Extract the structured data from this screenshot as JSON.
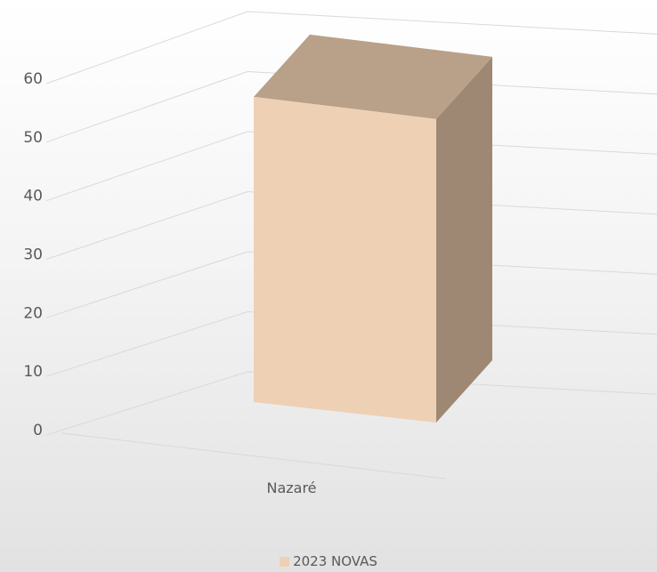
{
  "chart_data": {
    "type": "bar",
    "categories": [
      "Nazaré"
    ],
    "series": [
      {
        "name": "2023 NOVAS",
        "values": [
          59
        ]
      }
    ],
    "ylim": [
      0,
      60
    ],
    "yticks": [
      0,
      10,
      20,
      30,
      40,
      50,
      60
    ],
    "grid": true,
    "legend_position": "bottom",
    "colors": {
      "bar_front": "#EED0B5",
      "bar_top": "#B9A089",
      "bar_side": "#9E8874",
      "grid": "#D9D9D9",
      "text": "#595959"
    }
  }
}
